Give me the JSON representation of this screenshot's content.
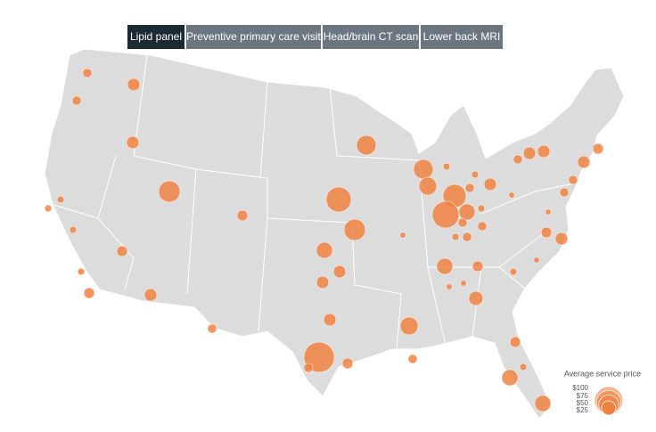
{
  "tabs": [
    "Lipid panel",
    "Preventive primary care visit",
    "Head/brain CT scan",
    "Lower back MRI"
  ],
  "map": {
    "legend": {
      "title": "Average service price",
      "ticks": [
        {
          "value": 100,
          "label": "$100"
        },
        {
          "value": 75,
          "label": "$75"
        },
        {
          "value": 50,
          "label": "$50"
        },
        {
          "value": 25,
          "label": "$25"
        }
      ]
    },
    "bubbles": [
      10,
      19,
      10,
      19,
      56,
      6,
      6,
      6,
      14,
      14,
      6,
      14,
      19,
      10,
      47,
      47,
      39,
      6,
      66,
      6,
      10,
      19,
      88,
      32,
      10,
      6,
      4,
      10,
      19,
      19,
      10,
      10,
      19,
      14,
      4,
      14,
      19,
      77,
      56,
      32,
      19,
      19,
      4,
      6,
      10,
      10,
      32,
      14,
      6,
      4,
      4,
      4,
      25,
      19,
      39,
      113,
      10,
      14,
      10,
      14,
      6,
      32,
      32
    ]
  }
}
